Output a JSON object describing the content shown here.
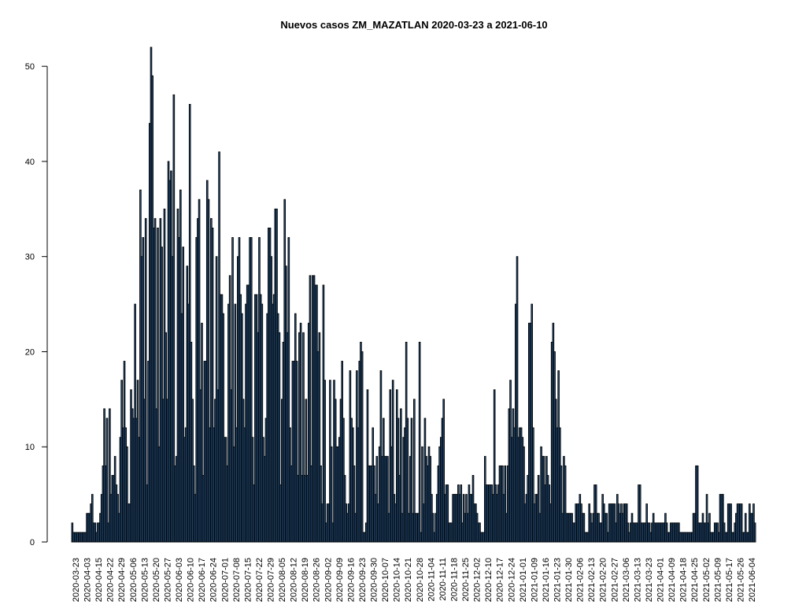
{
  "chart_data": {
    "type": "bar",
    "title": "Nuevos casos ZM_MAZATLAN 2020-03-23 a 2021-06-10",
    "xlabel": "",
    "ylabel": "",
    "start_date": "2020-03-23",
    "end_date": "2021-06-10",
    "ylim": [
      0,
      52
    ],
    "yticks": [
      0,
      10,
      20,
      30,
      40,
      50
    ],
    "grid": false,
    "legend": "none",
    "colors": {
      "bar_fill": "#2a5a8c",
      "bar_stroke": "#000000"
    },
    "x_tick_labels": [
      "2020-03-23",
      "2020-04-03",
      "2020-04-15",
      "2020-04-22",
      "2020-04-29",
      "2020-05-06",
      "2020-05-13",
      "2020-05-20",
      "2020-05-27",
      "2020-06-03",
      "2020-06-10",
      "2020-06-17",
      "2020-06-24",
      "2020-07-01",
      "2020-07-08",
      "2020-07-15",
      "2020-07-22",
      "2020-07-29",
      "2020-08-05",
      "2020-08-12",
      "2020-08-19",
      "2020-08-26",
      "2020-09-02",
      "2020-09-09",
      "2020-09-16",
      "2020-09-23",
      "2020-09-30",
      "2020-10-07",
      "2020-10-14",
      "2020-10-21",
      "2020-10-28",
      "2020-11-04",
      "2020-11-11",
      "2020-11-18",
      "2020-11-25",
      "2020-12-02",
      "2020-12-10",
      "2020-12-17",
      "2020-12-24",
      "2021-01-01",
      "2021-01-09",
      "2021-01-16",
      "2021-01-23",
      "2021-01-30",
      "2021-02-06",
      "2021-02-13",
      "2021-02-20",
      "2021-02-27",
      "2021-03-06",
      "2021-03-13",
      "2021-03-23",
      "2021-04-01",
      "2021-04-09",
      "2021-04-18",
      "2021-04-25",
      "2021-05-02",
      "2021-05-09",
      "2021-05-17",
      "2021-05-26",
      "2021-06-04"
    ],
    "values": [
      2,
      1,
      1,
      1,
      1,
      1,
      1,
      1,
      1,
      1,
      1,
      3,
      3,
      3,
      4,
      5,
      2,
      2,
      1,
      2,
      2,
      3,
      5,
      8,
      14,
      8,
      13,
      2,
      14,
      5,
      7,
      7,
      9,
      6,
      5,
      3,
      11,
      17,
      12,
      19,
      12,
      10,
      4,
      4,
      16,
      14,
      13,
      25,
      13,
      17,
      11,
      37,
      30,
      32,
      15,
      34,
      6,
      19,
      44,
      52,
      49,
      33,
      34,
      14,
      33,
      10,
      34,
      31,
      15,
      35,
      22,
      15,
      40,
      38,
      39,
      30,
      47,
      8,
      9,
      35,
      32,
      37,
      24,
      31,
      11,
      12,
      29,
      25,
      46,
      21,
      15,
      8,
      5,
      32,
      34,
      36,
      16,
      23,
      7,
      19,
      19,
      38,
      36,
      12,
      34,
      33,
      12,
      15,
      30,
      16,
      41,
      26,
      26,
      24,
      11,
      11,
      8,
      25,
      28,
      16,
      32,
      10,
      25,
      12,
      30,
      32,
      26,
      24,
      15,
      12,
      25,
      27,
      27,
      32,
      32,
      11,
      6,
      26,
      26,
      22,
      32,
      26,
      25,
      11,
      9,
      13,
      24,
      33,
      33,
      30,
      25,
      26,
      35,
      35,
      24,
      22,
      6,
      15,
      21,
      36,
      29,
      22,
      32,
      12,
      8,
      19,
      19,
      24,
      19,
      7,
      22,
      23,
      7,
      22,
      7,
      15,
      7,
      23,
      28,
      8,
      28,
      28,
      27,
      27,
      20,
      22,
      8,
      4,
      27,
      17,
      2,
      4,
      4,
      17,
      10,
      2,
      17,
      15,
      10,
      10,
      11,
      15,
      19,
      13,
      7,
      4,
      3,
      4,
      18,
      13,
      12,
      8,
      3,
      18,
      12,
      19,
      21,
      20,
      1,
      1,
      2,
      16,
      8,
      8,
      8,
      12,
      8,
      5,
      9,
      4,
      10,
      18,
      9,
      13,
      9,
      9,
      9,
      3,
      16,
      10,
      17,
      5,
      4,
      16,
      13,
      7,
      14,
      3,
      11,
      12,
      21,
      13,
      3,
      9,
      13,
      3,
      15,
      3,
      3,
      3,
      21,
      1,
      10,
      4,
      13,
      9,
      8,
      10,
      9,
      5,
      3,
      1,
      3,
      5,
      8,
      10,
      11,
      13,
      15,
      5,
      6,
      6,
      2,
      2,
      2,
      5,
      5,
      5,
      5,
      6,
      5,
      6,
      2,
      5,
      3,
      5,
      3,
      6,
      5,
      5,
      7,
      4,
      4,
      3,
      2,
      2,
      1,
      1,
      1,
      9,
      6,
      6,
      6,
      6,
      6,
      5,
      16,
      6,
      5,
      6,
      8,
      8,
      8,
      5,
      8,
      3,
      8,
      14,
      17,
      11,
      14,
      12,
      25,
      30,
      11,
      12,
      12,
      11,
      10,
      4,
      5,
      7,
      23,
      23,
      25,
      12,
      4,
      5,
      5,
      7,
      3,
      10,
      9,
      9,
      6,
      9,
      7,
      6,
      4,
      21,
      23,
      20,
      15,
      12,
      18,
      12,
      8,
      3,
      9,
      8,
      3,
      3,
      3,
      3,
      3,
      2,
      2,
      4,
      4,
      4,
      5,
      4,
      3,
      3,
      1,
      1,
      1,
      4,
      3,
      2,
      3,
      6,
      6,
      3,
      3,
      2,
      2,
      5,
      4,
      3,
      3,
      1,
      4,
      4,
      4,
      4,
      4,
      2,
      5,
      4,
      3,
      4,
      3,
      4,
      4,
      4,
      2,
      1,
      2,
      3,
      2,
      2,
      2,
      2,
      6,
      6,
      2,
      2,
      2,
      2,
      4,
      2,
      2,
      1,
      2,
      3,
      2,
      2,
      2,
      2,
      2,
      2,
      2,
      2,
      3,
      2,
      1,
      1,
      2,
      2,
      2,
      2,
      2,
      2,
      2,
      1,
      1,
      1,
      1,
      1,
      1,
      1,
      1,
      1,
      1,
      3,
      3,
      8,
      8,
      2,
      2,
      2,
      3,
      2,
      2,
      5,
      2,
      3,
      1,
      1,
      1,
      2,
      2,
      2,
      1,
      5,
      5,
      5,
      2,
      1,
      1,
      4,
      4,
      4,
      1,
      1,
      2,
      3,
      4,
      4,
      4,
      4,
      1,
      1,
      3,
      1,
      1,
      4,
      3,
      3,
      4,
      2
    ]
  }
}
